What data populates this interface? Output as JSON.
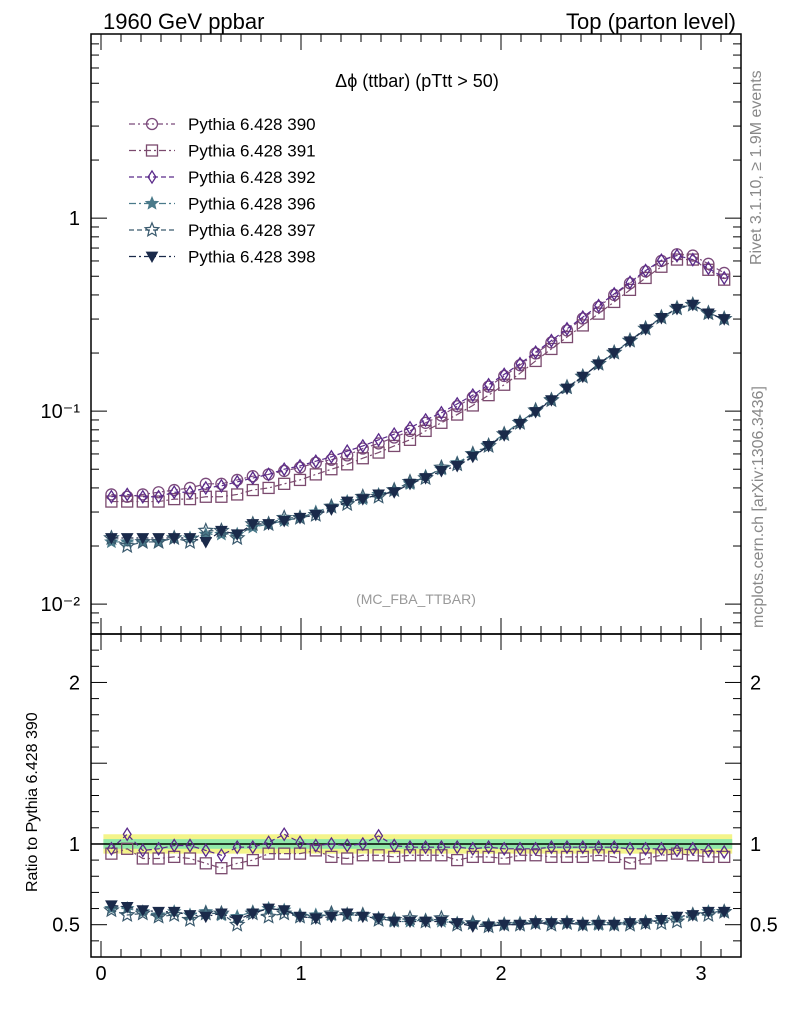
{
  "header": {
    "left": "1960 GeV ppbar",
    "right": "Top (parton level)"
  },
  "side": {
    "rivet": "Rivet 3.1.10, ≥ 1.9M events",
    "mcplots": "mcplots.cern.ch [arXiv:1306.3436]"
  },
  "plot_title": "Δϕ (ttbar) (pTtt > 50)",
  "analysis_tag": "(MC_FBA_TTBAR)",
  "chart_data": [
    {
      "type": "line",
      "panel": "main",
      "title": "Δϕ (ttbar) (pTtt > 50)",
      "xlabel": "",
      "ylabel": "",
      "xlim": [
        -0.05,
        3.2
      ],
      "ylim": [
        0.007,
        9
      ],
      "yscale": "log",
      "x_ticks": [
        "0",
        "1",
        "2",
        "3"
      ],
      "y_ticks": [
        "10⁻²",
        "10⁻¹",
        "1"
      ],
      "legend_position": "top-left",
      "x": [
        0.052,
        0.131,
        0.209,
        0.288,
        0.366,
        0.445,
        0.524,
        0.602,
        0.681,
        0.759,
        0.838,
        0.916,
        0.995,
        1.074,
        1.152,
        1.231,
        1.309,
        1.388,
        1.466,
        1.545,
        1.623,
        1.702,
        1.781,
        1.859,
        1.938,
        2.016,
        2.095,
        2.173,
        2.252,
        2.33,
        2.409,
        2.488,
        2.566,
        2.645,
        2.723,
        2.802,
        2.88,
        2.959,
        3.037,
        3.116
      ],
      "series": [
        {
          "name": "Pythia 6.428 390",
          "marker": "circle-open",
          "color": "#7b4a7b",
          "values": [
            0.037,
            0.036,
            0.037,
            0.038,
            0.039,
            0.04,
            0.042,
            0.042,
            0.044,
            0.046,
            0.047,
            0.049,
            0.051,
            0.054,
            0.056,
            0.059,
            0.064,
            0.068,
            0.073,
            0.079,
            0.087,
            0.095,
            0.106,
            0.118,
            0.134,
            0.152,
            0.173,
            0.199,
            0.227,
            0.262,
            0.302,
            0.347,
            0.4,
            0.46,
            0.53,
            0.6,
            0.65,
            0.64,
            0.58,
            0.52
          ]
        },
        {
          "name": "Pythia 6.428 391",
          "marker": "square-open",
          "color": "#7b4a6e",
          "values": [
            0.034,
            0.034,
            0.034,
            0.034,
            0.035,
            0.035,
            0.036,
            0.036,
            0.037,
            0.039,
            0.04,
            0.042,
            0.044,
            0.047,
            0.05,
            0.053,
            0.057,
            0.061,
            0.066,
            0.071,
            0.079,
            0.087,
            0.096,
            0.107,
            0.121,
            0.137,
            0.157,
            0.182,
            0.21,
            0.242,
            0.278,
            0.32,
            0.368,
            0.425,
            0.49,
            0.56,
            0.61,
            0.61,
            0.54,
            0.48
          ]
        },
        {
          "name": "Pythia 6.428 392",
          "marker": "diamond-open",
          "color": "#5a2a8a",
          "values": [
            0.036,
            0.037,
            0.036,
            0.036,
            0.038,
            0.038,
            0.04,
            0.041,
            0.043,
            0.045,
            0.047,
            0.05,
            0.052,
            0.055,
            0.058,
            0.062,
            0.066,
            0.071,
            0.076,
            0.082,
            0.09,
            0.098,
            0.109,
            0.121,
            0.137,
            0.155,
            0.176,
            0.202,
            0.232,
            0.267,
            0.307,
            0.352,
            0.405,
            0.465,
            0.535,
            0.605,
            0.64,
            0.61,
            0.55,
            0.49
          ]
        },
        {
          "name": "Pythia 6.428 396",
          "marker": "star-filled",
          "color": "#4a7a8a",
          "values": [
            0.021,
            0.021,
            0.021,
            0.021,
            0.022,
            0.022,
            0.023,
            0.023,
            0.023,
            0.025,
            0.026,
            0.027,
            0.028,
            0.03,
            0.032,
            0.034,
            0.035,
            0.037,
            0.039,
            0.042,
            0.046,
            0.05,
            0.054,
            0.06,
            0.067,
            0.076,
            0.088,
            0.1,
            0.115,
            0.132,
            0.152,
            0.175,
            0.2,
            0.231,
            0.267,
            0.305,
            0.34,
            0.355,
            0.32,
            0.3
          ]
        },
        {
          "name": "Pythia 6.428 397",
          "marker": "star-open",
          "color": "#3a5a6e",
          "values": [
            0.022,
            0.02,
            0.021,
            0.021,
            0.022,
            0.021,
            0.024,
            0.024,
            0.022,
            0.026,
            0.026,
            0.028,
            0.028,
            0.029,
            0.032,
            0.033,
            0.036,
            0.036,
            0.039,
            0.043,
            0.045,
            0.051,
            0.053,
            0.06,
            0.066,
            0.076,
            0.087,
            0.101,
            0.114,
            0.133,
            0.151,
            0.176,
            0.201,
            0.232,
            0.268,
            0.306,
            0.341,
            0.356,
            0.322,
            0.301
          ]
        },
        {
          "name": "Pythia 6.428 398",
          "marker": "triangle-down-filled",
          "color": "#1a2a4a",
          "values": [
            0.022,
            0.022,
            0.022,
            0.022,
            0.022,
            0.022,
            0.021,
            0.024,
            0.023,
            0.026,
            0.026,
            0.027,
            0.028,
            0.029,
            0.031,
            0.034,
            0.035,
            0.037,
            0.038,
            0.042,
            0.045,
            0.049,
            0.052,
            0.058,
            0.066,
            0.075,
            0.086,
            0.099,
            0.114,
            0.131,
            0.151,
            0.175,
            0.2,
            0.23,
            0.266,
            0.304,
            0.339,
            0.356,
            0.321,
            0.3
          ]
        }
      ]
    },
    {
      "type": "line",
      "panel": "ratio",
      "xlabel": "",
      "ylabel": "Ratio to Pythia 6.428 390",
      "xlim": [
        -0.05,
        3.2
      ],
      "ylim": [
        0.3,
        2.3
      ],
      "yscale": "linear",
      "x_ticks": [
        "0",
        "1",
        "2",
        "3"
      ],
      "y_ticks": [
        "0.5",
        "1",
        "2"
      ],
      "reference_band": {
        "green": [
          0.97,
          1.03
        ],
        "yellow": [
          0.94,
          1.06
        ]
      },
      "x": [
        0.052,
        0.131,
        0.209,
        0.288,
        0.366,
        0.445,
        0.524,
        0.602,
        0.681,
        0.759,
        0.838,
        0.916,
        0.995,
        1.074,
        1.152,
        1.231,
        1.309,
        1.388,
        1.466,
        1.545,
        1.623,
        1.702,
        1.781,
        1.859,
        1.938,
        2.016,
        2.095,
        2.173,
        2.252,
        2.33,
        2.409,
        2.488,
        2.566,
        2.645,
        2.723,
        2.802,
        2.88,
        2.959,
        3.037,
        3.116
      ],
      "series": [
        {
          "name": "Pythia 6.428 390",
          "values": [
            1,
            1,
            1,
            1,
            1,
            1,
            1,
            1,
            1,
            1,
            1,
            1,
            1,
            1,
            1,
            1,
            1,
            1,
            1,
            1,
            1,
            1,
            1,
            1,
            1,
            1,
            1,
            1,
            1,
            1,
            1,
            1,
            1,
            1,
            1,
            1,
            1,
            1,
            1,
            1
          ]
        },
        {
          "name": "Pythia 6.428 391",
          "values": [
            0.94,
            0.97,
            0.91,
            0.91,
            0.92,
            0.91,
            0.88,
            0.85,
            0.88,
            0.9,
            0.94,
            0.94,
            0.94,
            0.96,
            0.92,
            0.91,
            0.93,
            0.93,
            0.92,
            0.93,
            0.93,
            0.93,
            0.9,
            0.92,
            0.92,
            0.91,
            0.93,
            0.93,
            0.92,
            0.92,
            0.92,
            0.93,
            0.92,
            0.88,
            0.91,
            0.93,
            0.94,
            0.93,
            0.92,
            0.92
          ]
        },
        {
          "name": "Pythia 6.428 392",
          "values": [
            0.97,
            1.06,
            0.96,
            0.97,
            0.99,
            0.99,
            0.96,
            0.93,
            0.98,
            0.98,
            1.01,
            1.06,
            1.01,
            0.99,
            1.0,
            0.99,
            1.0,
            1.05,
            0.99,
            0.98,
            0.98,
            0.98,
            0.98,
            0.97,
            0.98,
            0.97,
            0.97,
            0.97,
            0.98,
            0.98,
            0.98,
            0.98,
            0.98,
            0.97,
            0.97,
            0.97,
            0.96,
            0.97,
            0.96,
            0.95
          ]
        },
        {
          "name": "Pythia 6.428 396",
          "values": [
            0.6,
            0.6,
            0.58,
            0.56,
            0.58,
            0.56,
            0.58,
            0.56,
            0.55,
            0.58,
            0.6,
            0.59,
            0.56,
            0.56,
            0.56,
            0.56,
            0.56,
            0.54,
            0.52,
            0.52,
            0.53,
            0.52,
            0.51,
            0.51,
            0.5,
            0.5,
            0.51,
            0.51,
            0.51,
            0.51,
            0.5,
            0.5,
            0.5,
            0.51,
            0.52,
            0.53,
            0.54,
            0.56,
            0.58,
            0.58
          ]
        },
        {
          "name": "Pythia 6.428 397",
          "values": [
            0.59,
            0.56,
            0.57,
            0.55,
            0.56,
            0.53,
            0.57,
            0.57,
            0.5,
            0.57,
            0.55,
            0.57,
            0.55,
            0.54,
            0.57,
            0.56,
            0.56,
            0.53,
            0.53,
            0.54,
            0.52,
            0.54,
            0.5,
            0.51,
            0.49,
            0.5,
            0.5,
            0.51,
            0.5,
            0.51,
            0.5,
            0.51,
            0.5,
            0.5,
            0.51,
            0.51,
            0.52,
            0.56,
            0.56,
            0.58
          ]
        },
        {
          "name": "Pythia 6.428 398",
          "values": [
            0.62,
            0.61,
            0.59,
            0.58,
            0.58,
            0.56,
            0.55,
            0.57,
            0.53,
            0.57,
            0.6,
            0.59,
            0.55,
            0.54,
            0.55,
            0.57,
            0.55,
            0.54,
            0.52,
            0.52,
            0.52,
            0.52,
            0.51,
            0.49,
            0.49,
            0.5,
            0.5,
            0.51,
            0.51,
            0.51,
            0.5,
            0.5,
            0.5,
            0.51,
            0.51,
            0.53,
            0.55,
            0.56,
            0.58,
            0.58
          ]
        }
      ]
    }
  ]
}
